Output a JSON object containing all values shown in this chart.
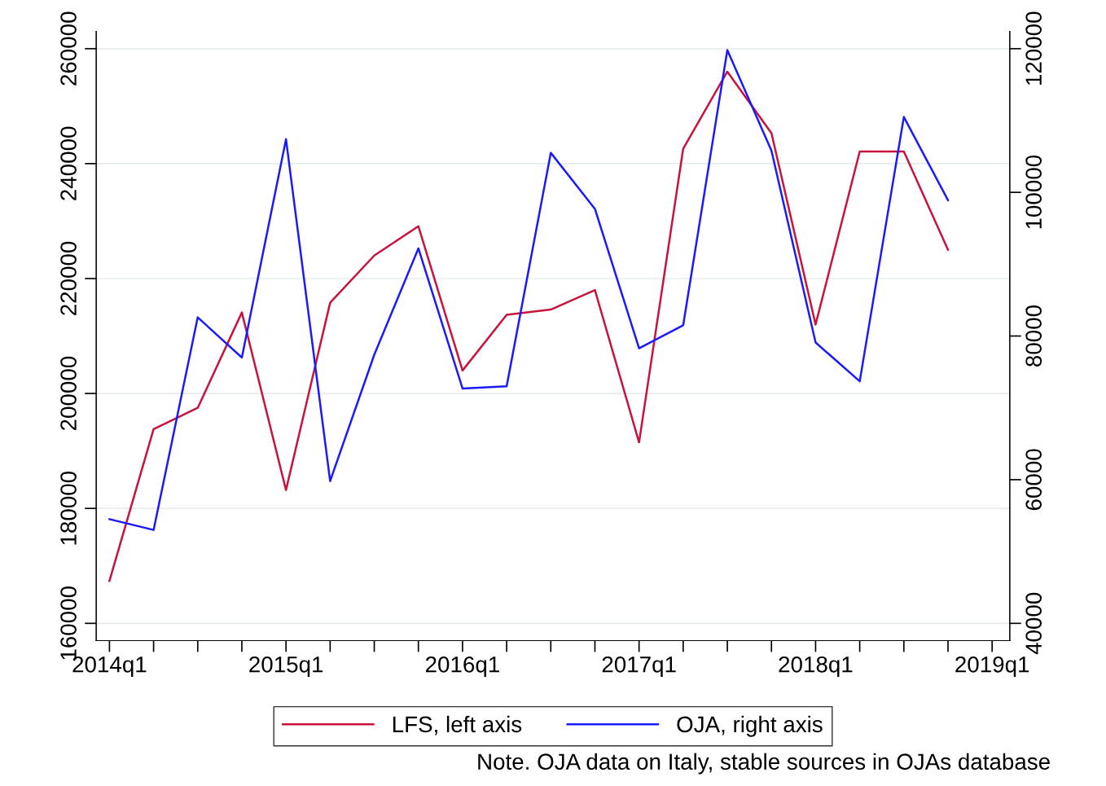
{
  "chart_data": {
    "type": "line",
    "categories": [
      "2014q1",
      null,
      null,
      null,
      "2015q1",
      null,
      null,
      null,
      "2016q1",
      null,
      null,
      null,
      "2017q1",
      null,
      null,
      null,
      "2018q1",
      null,
      null,
      null,
      "2019q1"
    ],
    "series": [
      {
        "name": "LFS, left axis",
        "color": "#c8143c",
        "values": [
          167400,
          193800,
          197500,
          214100,
          183200,
          215800,
          224000,
          229100,
          204000,
          213700,
          214600,
          218000,
          191500,
          242600,
          256000,
          245300,
          212000,
          242100,
          242100,
          225000,
          null
        ]
      },
      {
        "name": "OJA, right axis",
        "color": "#1a1aff",
        "axis": "y2",
        "values": [
          54500,
          53000,
          82600,
          77000,
          107400,
          59800,
          77400,
          92200,
          72700,
          73000,
          105500,
          97700,
          78300,
          81500,
          119800,
          105800,
          79100,
          73700,
          110500,
          98900,
          null
        ]
      }
    ],
    "ylim": [
      157000,
      263000
    ],
    "yticks": [
      160000,
      180000,
      200000,
      220000,
      240000,
      260000
    ],
    "y2lim": [
      37600,
      122400
    ],
    "y2ticks": [
      40000,
      60000,
      80000,
      100000,
      120000
    ],
    "grid": "y",
    "legend": "bottom",
    "marker": "none",
    "line_style": "solid",
    "annotations": [
      "Note. OJA data on Italy, stable sources in OJAs database"
    ]
  }
}
